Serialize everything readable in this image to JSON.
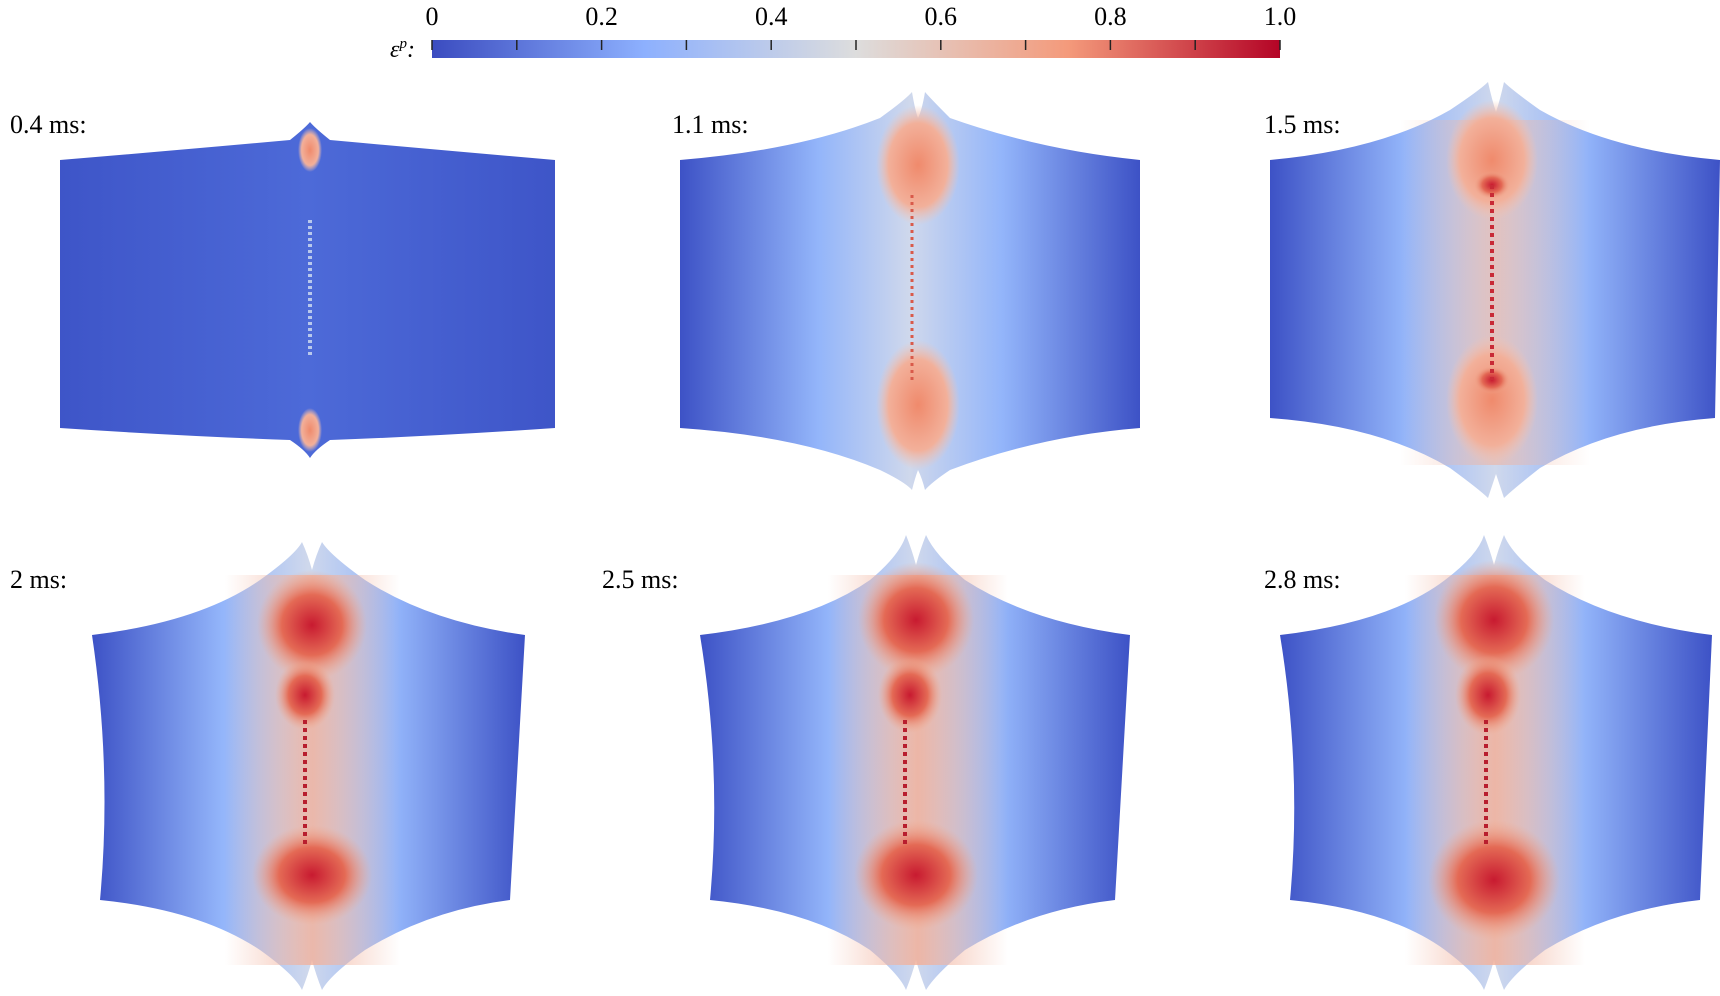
{
  "colorbar": {
    "symbol": "ε",
    "superscript": "p",
    "suffix": ":",
    "tick_labels": [
      "0",
      "0.2",
      "0.4",
      "0.6",
      "0.8",
      "1.0"
    ],
    "range": [
      0,
      1.0
    ],
    "colors": {
      "low": "#3b4cc0",
      "mid": "#dddddd",
      "high": "#b40426"
    }
  },
  "panels": [
    {
      "label": "0.4 ms:"
    },
    {
      "label": "1.1 ms:"
    },
    {
      "label": "1.5 ms:"
    },
    {
      "label": "2 ms:"
    },
    {
      "label": "2.5 ms:"
    },
    {
      "label": "2.8 ms:"
    }
  ]
}
